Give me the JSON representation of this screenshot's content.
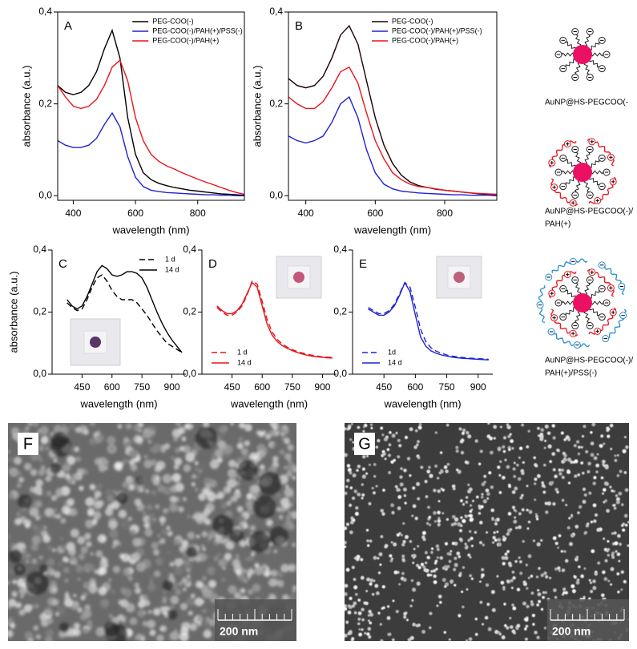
{
  "chart_data": [
    {
      "type": "line",
      "panel": "A",
      "xlabel": "wavelength (nm)",
      "ylabel": "absorbance (a.u.)",
      "x": [
        350,
        375,
        400,
        425,
        450,
        475,
        500,
        525,
        550,
        575,
        600,
        625,
        650,
        675,
        700,
        725,
        750,
        775,
        800,
        825,
        850,
        875,
        900,
        925,
        950
      ],
      "xlim": [
        350,
        950
      ],
      "xticks": [
        400,
        600,
        800
      ],
      "ylim": [
        -0.01,
        0.4
      ],
      "yticks": [
        {
          "value": 0,
          "label": "0,0"
        },
        {
          "value": 0.2,
          "label": "0,2"
        },
        {
          "value": 0.4,
          "label": "0,4"
        }
      ],
      "legend": "upper right",
      "series": [
        {
          "name": "PEG-COO(-)",
          "color": "#000000",
          "values": [
            0.24,
            0.225,
            0.22,
            0.225,
            0.24,
            0.27,
            0.32,
            0.36,
            0.3,
            0.17,
            0.09,
            0.05,
            0.035,
            0.027,
            0.022,
            0.018,
            0.015,
            0.012,
            0.01,
            0.008,
            0.006,
            0.004,
            0.003,
            0.002,
            0.001
          ]
        },
        {
          "name": "PEG-COO(-)/PAH(+)/PSS(-)",
          "color": "#2222d0",
          "values": [
            0.12,
            0.11,
            0.105,
            0.105,
            0.11,
            0.125,
            0.155,
            0.18,
            0.15,
            0.085,
            0.04,
            0.02,
            0.012,
            0.009,
            0.007,
            0.006,
            0.005,
            0.004,
            0.003,
            0.002,
            0.002,
            0.001,
            0.001,
            0,
            0
          ]
        },
        {
          "name": "PEG-COO(-)/PAH(+)",
          "color": "#e8141c",
          "values": [
            0.24,
            0.215,
            0.195,
            0.19,
            0.195,
            0.21,
            0.24,
            0.28,
            0.295,
            0.25,
            0.17,
            0.12,
            0.09,
            0.075,
            0.065,
            0.058,
            0.05,
            0.043,
            0.036,
            0.03,
            0.024,
            0.018,
            0.012,
            0.007,
            0.003
          ]
        }
      ]
    },
    {
      "type": "line",
      "panel": "B",
      "xlabel": "wavelength (nm)",
      "ylabel": "absorbance (a.u.)",
      "x": [
        350,
        375,
        400,
        425,
        450,
        475,
        500,
        525,
        550,
        575,
        600,
        625,
        650,
        675,
        700,
        725,
        750,
        775,
        800,
        825,
        850,
        875,
        900,
        925,
        950
      ],
      "xlim": [
        350,
        950
      ],
      "xticks": [
        400,
        600,
        800
      ],
      "ylim": [
        -0.01,
        0.4
      ],
      "yticks": [
        {
          "value": 0,
          "label": "0,0"
        },
        {
          "value": 0.2,
          "label": "0,2"
        },
        {
          "value": 0.4,
          "label": "0,4"
        }
      ],
      "legend": "upper right",
      "series": [
        {
          "name": "PEG-COO(-)",
          "color": "#1a0000",
          "values": [
            0.255,
            0.24,
            0.235,
            0.24,
            0.26,
            0.3,
            0.35,
            0.37,
            0.33,
            0.25,
            0.17,
            0.11,
            0.07,
            0.045,
            0.03,
            0.022,
            0.018,
            0.014,
            0.012,
            0.01,
            0.008,
            0.006,
            0.004,
            0.003,
            0.002
          ]
        },
        {
          "name": "PEG-COO(-)/PAH(+)/PSS(-)",
          "color": "#2222d0",
          "values": [
            0.13,
            0.12,
            0.115,
            0.12,
            0.13,
            0.16,
            0.2,
            0.215,
            0.17,
            0.1,
            0.05,
            0.025,
            0.015,
            0.01,
            0.008,
            0.006,
            0.005,
            0.004,
            0.003,
            0.002,
            0.002,
            0.001,
            0.001,
            0.001,
            0
          ]
        },
        {
          "name": "PEG-COO(-)/PAH(+)",
          "color": "#e8141c",
          "values": [
            0.215,
            0.2,
            0.19,
            0.19,
            0.205,
            0.235,
            0.27,
            0.28,
            0.245,
            0.18,
            0.12,
            0.08,
            0.05,
            0.035,
            0.025,
            0.02,
            0.018,
            0.015,
            0.012,
            0.01,
            0.008,
            0.006,
            0.005,
            0.004,
            0.003
          ]
        }
      ]
    },
    {
      "type": "line",
      "panel": "C",
      "xlabel": "wavelength (nm)",
      "ylabel": "absorbance (a.u.)",
      "x": [
        375,
        400,
        425,
        450,
        475,
        500,
        525,
        550,
        575,
        600,
        625,
        650,
        675,
        700,
        725,
        750,
        775,
        800,
        825,
        850,
        875,
        900,
        925,
        950
      ],
      "xlim": [
        300,
        970
      ],
      "xticks": [
        450,
        600,
        750,
        900
      ],
      "ylim": [
        0,
        0.4
      ],
      "yticks": [
        {
          "value": 0,
          "label": "0,0"
        },
        {
          "value": 0.2,
          "label": "0,2"
        },
        {
          "value": 0.4,
          "label": "0,4"
        }
      ],
      "legend": "upper right",
      "series": [
        {
          "name": "1 d",
          "color": "#000000",
          "dash": true,
          "values": [
            0.23,
            0.215,
            0.205,
            0.21,
            0.24,
            0.28,
            0.31,
            0.32,
            0.3,
            0.27,
            0.25,
            0.24,
            0.24,
            0.24,
            0.23,
            0.21,
            0.19,
            0.165,
            0.14,
            0.12,
            0.1,
            0.09,
            0.08,
            0.07
          ]
        },
        {
          "name": "14 d",
          "color": "#000000",
          "values": [
            0.24,
            0.22,
            0.21,
            0.22,
            0.25,
            0.29,
            0.33,
            0.35,
            0.34,
            0.32,
            0.315,
            0.32,
            0.33,
            0.33,
            0.325,
            0.31,
            0.28,
            0.24,
            0.2,
            0.165,
            0.135,
            0.11,
            0.09,
            0.07
          ]
        }
      ]
    },
    {
      "type": "line",
      "panel": "D",
      "xlabel": "wavelength (nm)",
      "x": [
        375,
        400,
        425,
        450,
        475,
        500,
        525,
        550,
        575,
        600,
        625,
        650,
        675,
        700,
        725,
        750,
        775,
        800,
        825,
        850,
        875,
        900,
        925,
        950
      ],
      "xlim": [
        300,
        970
      ],
      "xticks": [
        450,
        600,
        750,
        900
      ],
      "ylim": [
        0,
        0.4
      ],
      "yticks": [
        {
          "value": 0,
          "label": "0,0"
        },
        {
          "value": 0.2,
          "label": "0,2"
        },
        {
          "value": 0.4,
          "label": "0,4"
        }
      ],
      "legend": "lower left",
      "series": [
        {
          "name": "1 d",
          "color": "#e8141c",
          "dash": true,
          "values": [
            0.215,
            0.2,
            0.19,
            0.19,
            0.2,
            0.22,
            0.255,
            0.3,
            0.29,
            0.235,
            0.175,
            0.135,
            0.112,
            0.097,
            0.087,
            0.079,
            0.073,
            0.068,
            0.064,
            0.061,
            0.058,
            0.056,
            0.055,
            0.054
          ]
        },
        {
          "name": "14 d",
          "color": "#e8141c",
          "values": [
            0.22,
            0.205,
            0.195,
            0.195,
            0.205,
            0.225,
            0.26,
            0.295,
            0.28,
            0.22,
            0.16,
            0.125,
            0.105,
            0.092,
            0.083,
            0.076,
            0.07,
            0.065,
            0.061,
            0.058,
            0.056,
            0.054,
            0.053,
            0.052
          ]
        }
      ]
    },
    {
      "type": "line",
      "panel": "E",
      "xlabel": "wavelength (nm)",
      "x": [
        375,
        400,
        425,
        450,
        475,
        500,
        525,
        550,
        575,
        600,
        625,
        650,
        675,
        700,
        725,
        750,
        775,
        800,
        825,
        850,
        875,
        900,
        925,
        950
      ],
      "xlim": [
        300,
        970
      ],
      "xticks": [
        450,
        600,
        750,
        900
      ],
      "ylim": [
        0,
        0.4
      ],
      "yticks": [
        {
          "value": 0,
          "label": "0,0"
        },
        {
          "value": 0.2,
          "label": "0,2"
        },
        {
          "value": 0.4,
          "label": "0,4"
        }
      ],
      "legend": "lower left",
      "series": [
        {
          "name": "1d",
          "color": "#2222d0",
          "dash": true,
          "values": [
            0.215,
            0.205,
            0.195,
            0.195,
            0.205,
            0.225,
            0.26,
            0.295,
            0.28,
            0.215,
            0.145,
            0.105,
            0.085,
            0.074,
            0.067,
            0.062,
            0.058,
            0.056,
            0.054,
            0.052,
            0.051,
            0.05,
            0.049,
            0.048
          ]
        },
        {
          "name": "14 d",
          "color": "#2222d0",
          "values": [
            0.21,
            0.2,
            0.19,
            0.19,
            0.2,
            0.22,
            0.255,
            0.295,
            0.265,
            0.19,
            0.12,
            0.09,
            0.075,
            0.067,
            0.062,
            0.058,
            0.055,
            0.053,
            0.051,
            0.05,
            0.049,
            0.048,
            0.047,
            0.046
          ]
        }
      ]
    }
  ],
  "schematics": [
    {
      "label": [
        "AuNP@HS-PEGCOO(-"
      ],
      "color": "#000000"
    },
    {
      "label": [
        "AuNP@HS-PEGCOO(-)/",
        "PAH(+)"
      ],
      "color": "#e8141c"
    },
    {
      "label": [
        "AuNP@HS-PEGCOO(-)/",
        "PAH(+)/PSS(-)"
      ],
      "color": "#2222d0"
    }
  ],
  "micrographs": [
    {
      "panel": "F",
      "scale_bar": "200 nm"
    },
    {
      "panel": "G",
      "scale_bar": "200 nm"
    }
  ]
}
